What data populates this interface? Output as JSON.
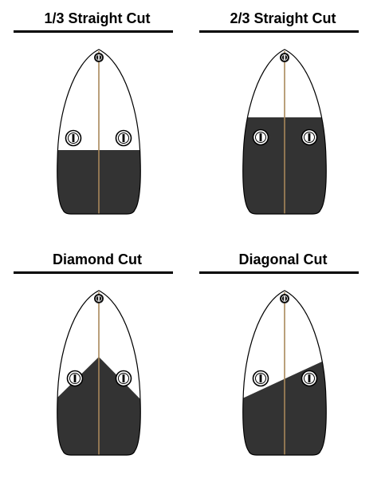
{
  "colors": {
    "fill": "#333333",
    "outline": "#000000",
    "stringer": "#a8885a",
    "background": "#ffffff"
  },
  "panels": [
    {
      "title": "1/3 Straight Cut",
      "cut": "third"
    },
    {
      "title": "2/3 Straight Cut",
      "cut": "two-thirds"
    },
    {
      "title": "Diamond Cut",
      "cut": "diamond"
    },
    {
      "title": "Diagonal Cut",
      "cut": "diagonal"
    }
  ]
}
